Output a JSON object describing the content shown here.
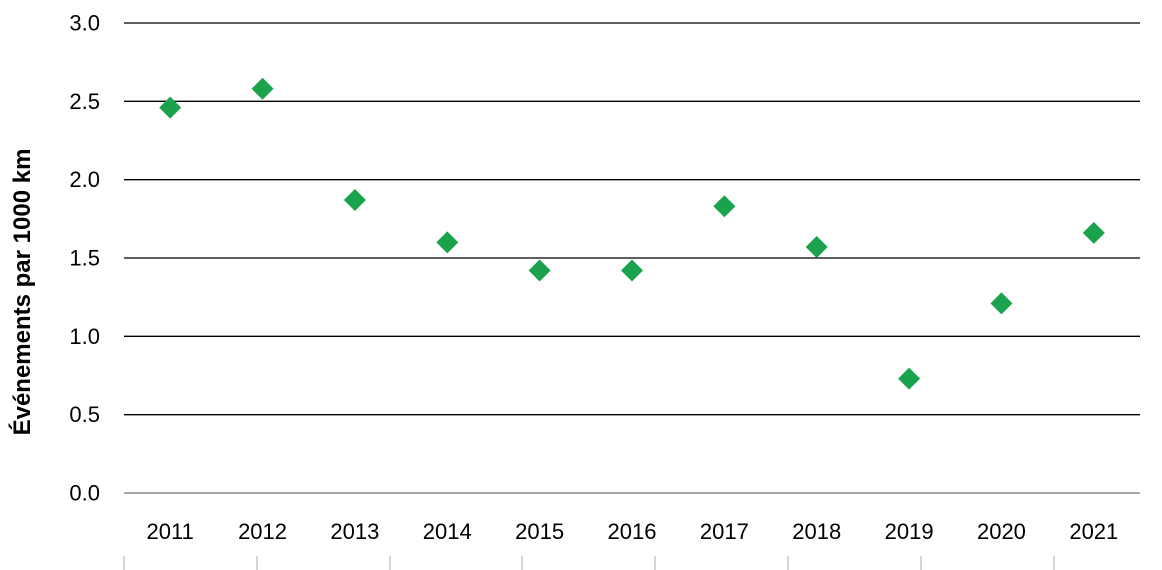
{
  "chart": {
    "colors": {
      "marker": "#1AA24D",
      "gridline": "#000000",
      "zero_axis_line": "#A6A6A6",
      "bottom_minor_tick": "#BFBFBF",
      "text": "#000000",
      "background": "#FFFFFF"
    }
  },
  "chart_data": {
    "type": "scatter",
    "marker_shape": "diamond",
    "title": "",
    "xlabel": "",
    "ylabel": "Événements par 1000 km",
    "categories": [
      "2011",
      "2012",
      "2013",
      "2014",
      "2015",
      "2016",
      "2017",
      "2018",
      "2019",
      "2020",
      "2021"
    ],
    "values": [
      2.46,
      2.58,
      1.87,
      1.6,
      1.42,
      1.42,
      1.83,
      1.57,
      0.73,
      1.21,
      1.66
    ],
    "ylim": [
      0,
      3
    ],
    "yticks": [
      0,
      0.5,
      1,
      1.5,
      2,
      2.5,
      3
    ],
    "ytick_labels": [
      "0.0",
      "0.5",
      "1.0",
      "1.5",
      "2.0",
      "2.5",
      "3.0"
    ],
    "grid": "horizontal",
    "legend": "none"
  }
}
